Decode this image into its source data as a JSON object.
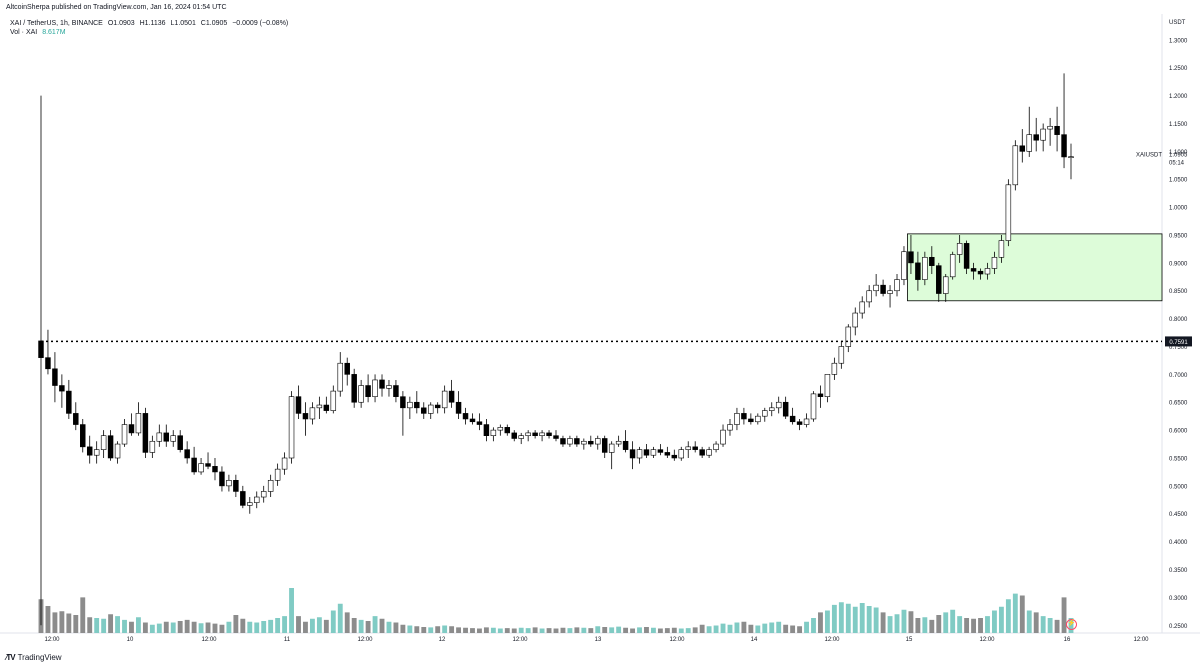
{
  "header": {
    "text": "AltcoinSherpa published on TradingView.com, Jan 16, 2024 01:54 UTC"
  },
  "legend": {
    "symbol": "XAI / TetherUS, 1h, BINANCE",
    "open": "O1.0903",
    "high": "H1.1136",
    "low": "L1.0501",
    "close": "C1.0905",
    "change": "−0.0009 (−0.08%)",
    "volume_label": "Vol · XAI",
    "volume_value": "8.617M"
  },
  "price_axis": {
    "currency": "USDT",
    "ticks": [
      "1.3000",
      "1.2500",
      "1.2000",
      "1.1500",
      "1.1000",
      "1.0500",
      "1.0000",
      "0.9500",
      "0.9000",
      "0.8500",
      "0.8000",
      "0.7500",
      "0.7000",
      "0.6500",
      "0.6000",
      "0.5500",
      "0.5000",
      "0.4500",
      "0.4000",
      "0.3500",
      "0.3000",
      "0.2500"
    ],
    "current_symbol": "XAIUSDT",
    "current_price": "1.0905",
    "countdown": "05:14",
    "level_label": "0.7591"
  },
  "time_axis": {
    "ticks": [
      "12:00",
      "10",
      "12:00",
      "11",
      "12:00",
      "12",
      "12:00",
      "13",
      "12:00",
      "14",
      "12:00",
      "15",
      "12:00",
      "16",
      "12:00"
    ]
  },
  "footer": {
    "brand": "TradingView"
  },
  "colors": {
    "up_candle": "#ffffff",
    "down_candle": "#000000",
    "candle_outline": "#000000",
    "zone_fill": "#ddfcd9",
    "zone_border": "#000000",
    "volume_up": "#80cbc4",
    "volume_down": "#8c8c8c",
    "level_line": "#000000"
  },
  "chart_data": {
    "type": "candlestick",
    "timeframe": "1h",
    "x_label_ticks": [
      "12:00",
      "10",
      "12:00",
      "11",
      "12:00",
      "12",
      "12:00",
      "13",
      "12:00",
      "14",
      "12:00",
      "15",
      "12:00",
      "16",
      "12:00"
    ],
    "ylim": [
      0.2361,
      1.3464
    ],
    "horizontal_level": 0.7591,
    "supply_demand_zone": {
      "low": 0.832,
      "high": 0.952,
      "start_index": 125
    },
    "candles": [
      [
        0.76,
        1.2,
        0.25,
        0.73
      ],
      [
        0.73,
        0.78,
        0.7,
        0.71
      ],
      [
        0.71,
        0.74,
        0.65,
        0.68
      ],
      [
        0.68,
        0.7,
        0.64,
        0.67
      ],
      [
        0.67,
        0.69,
        0.62,
        0.63
      ],
      [
        0.63,
        0.65,
        0.6,
        0.61
      ],
      [
        0.61,
        0.62,
        0.56,
        0.57
      ],
      [
        0.57,
        0.59,
        0.54,
        0.555
      ],
      [
        0.555,
        0.58,
        0.54,
        0.565
      ],
      [
        0.565,
        0.6,
        0.55,
        0.59
      ],
      [
        0.59,
        0.6,
        0.545,
        0.55
      ],
      [
        0.55,
        0.58,
        0.54,
        0.575
      ],
      [
        0.575,
        0.62,
        0.57,
        0.61
      ],
      [
        0.61,
        0.63,
        0.59,
        0.595
      ],
      [
        0.595,
        0.65,
        0.59,
        0.63
      ],
      [
        0.63,
        0.64,
        0.55,
        0.56
      ],
      [
        0.56,
        0.59,
        0.55,
        0.58
      ],
      [
        0.58,
        0.61,
        0.57,
        0.595
      ],
      [
        0.595,
        0.61,
        0.57,
        0.58
      ],
      [
        0.58,
        0.6,
        0.57,
        0.59
      ],
      [
        0.59,
        0.6,
        0.56,
        0.565
      ],
      [
        0.565,
        0.58,
        0.54,
        0.55
      ],
      [
        0.55,
        0.57,
        0.52,
        0.525
      ],
      [
        0.525,
        0.55,
        0.52,
        0.54
      ],
      [
        0.54,
        0.56,
        0.53,
        0.535
      ],
      [
        0.535,
        0.55,
        0.51,
        0.525
      ],
      [
        0.525,
        0.535,
        0.49,
        0.5
      ],
      [
        0.5,
        0.52,
        0.49,
        0.51
      ],
      [
        0.51,
        0.52,
        0.48,
        0.49
      ],
      [
        0.49,
        0.5,
        0.46,
        0.465
      ],
      [
        0.465,
        0.48,
        0.45,
        0.47
      ],
      [
        0.47,
        0.49,
        0.46,
        0.48
      ],
      [
        0.48,
        0.5,
        0.47,
        0.49
      ],
      [
        0.49,
        0.52,
        0.48,
        0.51
      ],
      [
        0.51,
        0.54,
        0.5,
        0.53
      ],
      [
        0.53,
        0.56,
        0.52,
        0.55
      ],
      [
        0.55,
        0.67,
        0.54,
        0.66
      ],
      [
        0.66,
        0.68,
        0.62,
        0.63
      ],
      [
        0.63,
        0.65,
        0.59,
        0.62
      ],
      [
        0.62,
        0.65,
        0.61,
        0.64
      ],
      [
        0.64,
        0.66,
        0.62,
        0.645
      ],
      [
        0.645,
        0.66,
        0.63,
        0.635
      ],
      [
        0.635,
        0.68,
        0.63,
        0.67
      ],
      [
        0.67,
        0.74,
        0.66,
        0.72
      ],
      [
        0.72,
        0.73,
        0.68,
        0.7
      ],
      [
        0.7,
        0.71,
        0.64,
        0.65
      ],
      [
        0.65,
        0.69,
        0.64,
        0.68
      ],
      [
        0.68,
        0.7,
        0.65,
        0.66
      ],
      [
        0.66,
        0.7,
        0.65,
        0.69
      ],
      [
        0.69,
        0.7,
        0.66,
        0.675
      ],
      [
        0.675,
        0.69,
        0.66,
        0.68
      ],
      [
        0.68,
        0.69,
        0.65,
        0.66
      ],
      [
        0.66,
        0.67,
        0.59,
        0.64
      ],
      [
        0.64,
        0.66,
        0.62,
        0.65
      ],
      [
        0.65,
        0.67,
        0.63,
        0.64
      ],
      [
        0.64,
        0.65,
        0.62,
        0.63
      ],
      [
        0.63,
        0.65,
        0.62,
        0.645
      ],
      [
        0.645,
        0.65,
        0.63,
        0.64
      ],
      [
        0.64,
        0.68,
        0.63,
        0.67
      ],
      [
        0.67,
        0.69,
        0.64,
        0.65
      ],
      [
        0.65,
        0.67,
        0.62,
        0.63
      ],
      [
        0.63,
        0.64,
        0.61,
        0.62
      ],
      [
        0.62,
        0.63,
        0.61,
        0.615
      ],
      [
        0.615,
        0.63,
        0.6,
        0.61
      ],
      [
        0.61,
        0.62,
        0.58,
        0.59
      ],
      [
        0.59,
        0.605,
        0.58,
        0.6
      ],
      [
        0.6,
        0.61,
        0.59,
        0.605
      ],
      [
        0.605,
        0.61,
        0.59,
        0.595
      ],
      [
        0.595,
        0.6,
        0.58,
        0.585
      ],
      [
        0.585,
        0.595,
        0.575,
        0.59
      ],
      [
        0.59,
        0.6,
        0.58,
        0.595
      ],
      [
        0.595,
        0.6,
        0.585,
        0.59
      ],
      [
        0.59,
        0.6,
        0.58,
        0.595
      ],
      [
        0.595,
        0.6,
        0.585,
        0.59
      ],
      [
        0.59,
        0.6,
        0.58,
        0.585
      ],
      [
        0.585,
        0.59,
        0.57,
        0.575
      ],
      [
        0.575,
        0.59,
        0.57,
        0.585
      ],
      [
        0.585,
        0.59,
        0.57,
        0.575
      ],
      [
        0.575,
        0.585,
        0.565,
        0.58
      ],
      [
        0.58,
        0.59,
        0.57,
        0.575
      ],
      [
        0.575,
        0.59,
        0.565,
        0.585
      ],
      [
        0.585,
        0.59,
        0.55,
        0.56
      ],
      [
        0.56,
        0.58,
        0.53,
        0.575
      ],
      [
        0.575,
        0.59,
        0.57,
        0.58
      ],
      [
        0.58,
        0.6,
        0.56,
        0.565
      ],
      [
        0.565,
        0.58,
        0.53,
        0.55
      ],
      [
        0.55,
        0.57,
        0.54,
        0.565
      ],
      [
        0.565,
        0.575,
        0.55,
        0.555
      ],
      [
        0.555,
        0.57,
        0.55,
        0.565
      ],
      [
        0.565,
        0.575,
        0.555,
        0.56
      ],
      [
        0.56,
        0.57,
        0.55,
        0.555
      ],
      [
        0.555,
        0.565,
        0.545,
        0.55
      ],
      [
        0.55,
        0.57,
        0.545,
        0.565
      ],
      [
        0.565,
        0.58,
        0.55,
        0.57
      ],
      [
        0.57,
        0.58,
        0.56,
        0.565
      ],
      [
        0.565,
        0.57,
        0.55,
        0.555
      ],
      [
        0.555,
        0.57,
        0.55,
        0.565
      ],
      [
        0.565,
        0.58,
        0.56,
        0.575
      ],
      [
        0.575,
        0.61,
        0.57,
        0.6
      ],
      [
        0.6,
        0.62,
        0.59,
        0.61
      ],
      [
        0.61,
        0.64,
        0.6,
        0.63
      ],
      [
        0.63,
        0.64,
        0.61,
        0.62
      ],
      [
        0.62,
        0.63,
        0.61,
        0.615
      ],
      [
        0.615,
        0.63,
        0.61,
        0.625
      ],
      [
        0.625,
        0.64,
        0.615,
        0.635
      ],
      [
        0.635,
        0.65,
        0.625,
        0.64
      ],
      [
        0.64,
        0.66,
        0.63,
        0.65
      ],
      [
        0.65,
        0.66,
        0.62,
        0.625
      ],
      [
        0.625,
        0.64,
        0.61,
        0.615
      ],
      [
        0.615,
        0.62,
        0.6,
        0.61
      ],
      [
        0.61,
        0.63,
        0.605,
        0.62
      ],
      [
        0.62,
        0.67,
        0.615,
        0.665
      ],
      [
        0.665,
        0.68,
        0.64,
        0.66
      ],
      [
        0.66,
        0.7,
        0.65,
        0.7
      ],
      [
        0.7,
        0.73,
        0.69,
        0.72
      ],
      [
        0.72,
        0.76,
        0.71,
        0.75
      ],
      [
        0.75,
        0.79,
        0.74,
        0.785
      ],
      [
        0.785,
        0.82,
        0.77,
        0.81
      ],
      [
        0.81,
        0.84,
        0.8,
        0.83
      ],
      [
        0.83,
        0.86,
        0.82,
        0.85
      ],
      [
        0.85,
        0.88,
        0.84,
        0.86
      ],
      [
        0.86,
        0.87,
        0.84,
        0.845
      ],
      [
        0.845,
        0.86,
        0.82,
        0.85
      ],
      [
        0.85,
        0.88,
        0.84,
        0.87
      ],
      [
        0.87,
        0.93,
        0.86,
        0.92
      ],
      [
        0.92,
        0.95,
        0.88,
        0.9
      ],
      [
        0.9,
        0.92,
        0.85,
        0.87
      ],
      [
        0.87,
        0.92,
        0.86,
        0.91
      ],
      [
        0.91,
        0.93,
        0.88,
        0.895
      ],
      [
        0.895,
        0.9,
        0.83,
        0.845
      ],
      [
        0.845,
        0.88,
        0.83,
        0.875
      ],
      [
        0.875,
        0.92,
        0.87,
        0.915
      ],
      [
        0.915,
        0.95,
        0.9,
        0.935
      ],
      [
        0.935,
        0.94,
        0.88,
        0.89
      ],
      [
        0.89,
        0.9,
        0.87,
        0.885
      ],
      [
        0.885,
        0.89,
        0.87,
        0.88
      ],
      [
        0.88,
        0.9,
        0.87,
        0.89
      ],
      [
        0.89,
        0.92,
        0.88,
        0.91
      ],
      [
        0.91,
        0.95,
        0.9,
        0.94
      ],
      [
        0.94,
        1.05,
        0.93,
        1.04
      ],
      [
        1.04,
        1.12,
        1.03,
        1.11
      ],
      [
        1.11,
        1.14,
        1.08,
        1.1
      ],
      [
        1.1,
        1.18,
        1.09,
        1.13
      ],
      [
        1.13,
        1.16,
        1.1,
        1.12
      ],
      [
        1.12,
        1.15,
        1.1,
        1.14
      ],
      [
        1.14,
        1.16,
        1.11,
        1.145
      ],
      [
        1.145,
        1.18,
        1.1,
        1.13
      ],
      [
        1.13,
        1.24,
        1.07,
        1.09
      ],
      [
        1.09,
        1.114,
        1.05,
        1.0905
      ]
    ],
    "volume_note": "Volume shown in separate bottom pane; relative heights estimated",
    "volume_relative": [
      0.9,
      0.72,
      0.55,
      0.58,
      0.52,
      0.48,
      0.95,
      0.42,
      0.4,
      0.38,
      0.5,
      0.45,
      0.35,
      0.3,
      0.42,
      0.28,
      0.22,
      0.25,
      0.3,
      0.28,
      0.32,
      0.35,
      0.3,
      0.26,
      0.28,
      0.25,
      0.22,
      0.3,
      0.48,
      0.38,
      0.3,
      0.28,
      0.32,
      0.35,
      0.4,
      0.45,
      1.2,
      0.45,
      0.3,
      0.38,
      0.42,
      0.35,
      0.6,
      0.78,
      0.55,
      0.4,
      0.35,
      0.32,
      0.45,
      0.38,
      0.3,
      0.28,
      0.22,
      0.2,
      0.18,
      0.16,
      0.15,
      0.18,
      0.2,
      0.18,
      0.15,
      0.14,
      0.13,
      0.12,
      0.15,
      0.14,
      0.12,
      0.13,
      0.12,
      0.14,
      0.13,
      0.15,
      0.12,
      0.13,
      0.12,
      0.14,
      0.13,
      0.15,
      0.14,
      0.13,
      0.18,
      0.16,
      0.15,
      0.17,
      0.14,
      0.12,
      0.15,
      0.16,
      0.14,
      0.12,
      0.13,
      0.14,
      0.12,
      0.13,
      0.15,
      0.22,
      0.18,
      0.2,
      0.25,
      0.22,
      0.28,
      0.3,
      0.22,
      0.2,
      0.25,
      0.28,
      0.3,
      0.22,
      0.2,
      0.18,
      0.3,
      0.4,
      0.55,
      0.6,
      0.75,
      0.82,
      0.78,
      0.7,
      0.8,
      0.72,
      0.68,
      0.55,
      0.45,
      0.5,
      0.62,
      0.58,
      0.4,
      0.42,
      0.35,
      0.48,
      0.55,
      0.62,
      0.45,
      0.4,
      0.38,
      0.4,
      0.45,
      0.6,
      0.7,
      0.9,
      1.05,
      1.0,
      0.6,
      0.55,
      0.45,
      0.4,
      0.35,
      0.95,
      0.4
    ]
  }
}
